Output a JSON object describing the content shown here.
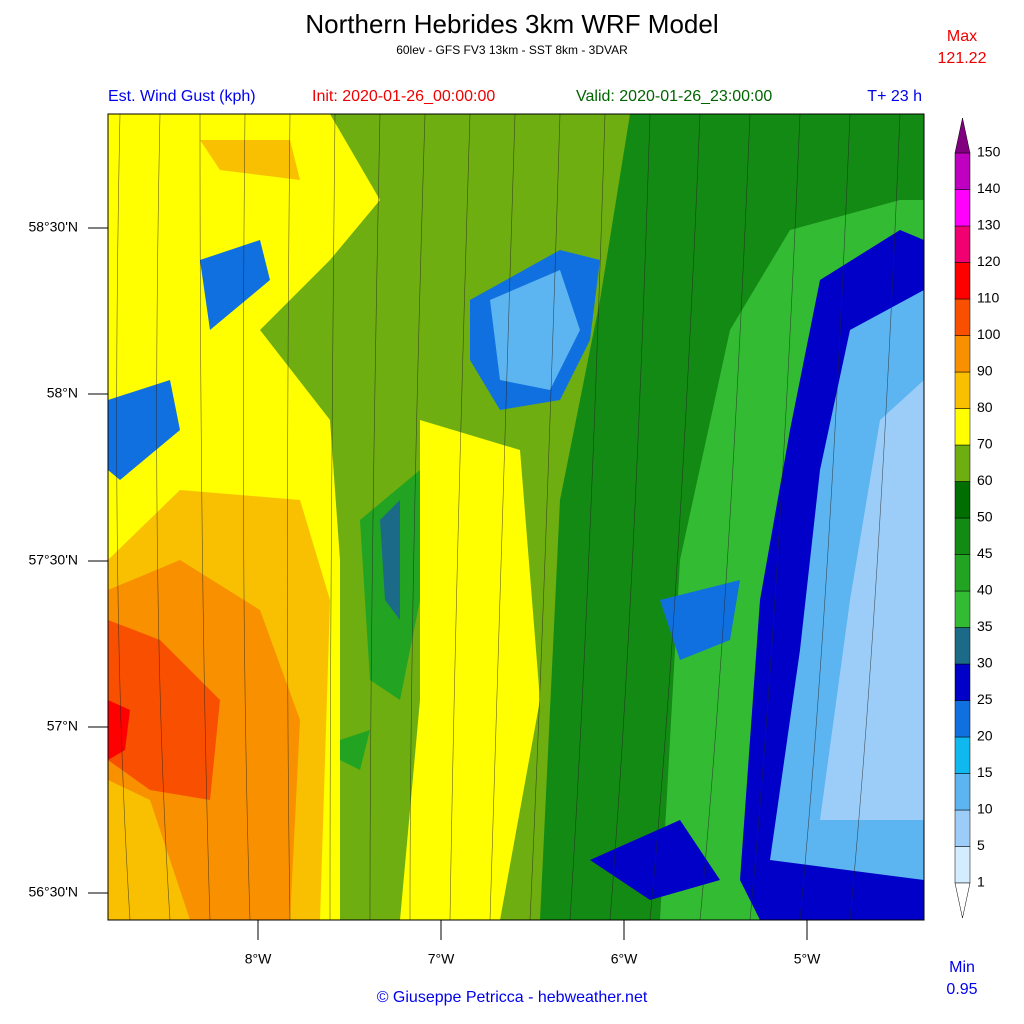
{
  "header": {
    "title": "Northern Hebrides 3km WRF Model",
    "subtitle": "60lev - GFS FV3 13km - SST 8km - 3DVAR"
  },
  "labels": {
    "variable": "Est. Wind Gust (kph)",
    "init": "Init: 2020-01-26_00:00:00",
    "valid": "Valid: 2020-01-26_23:00:00",
    "forecast_hour": "T+ 23 h"
  },
  "max": {
    "label": "Max",
    "value": 121.22
  },
  "min": {
    "label": "Min",
    "value": 0.95
  },
  "lat_ticks": [
    "58°30'N",
    "58°N",
    "57°30'N",
    "57°N",
    "56°30'N"
  ],
  "lon_ticks": [
    "8°W",
    "7°W",
    "6°W",
    "5°W"
  ],
  "colorbar": {
    "levels": [
      1,
      5,
      10,
      15,
      20,
      25,
      30,
      35,
      40,
      45,
      50,
      60,
      70,
      80,
      90,
      100,
      110,
      120,
      130,
      140,
      150
    ],
    "colors": [
      "#d4ecff",
      "#9ccdf8",
      "#5cb4f0",
      "#10b8f0",
      "#1070e0",
      "#0000c8",
      "#1a6a88",
      "#33bb33",
      "#22a322",
      "#138a13",
      "#006e00",
      "#6eae10",
      "#ffff00",
      "#f8c000",
      "#f89000",
      "#f85000",
      "#ff0000",
      "#f00070",
      "#ff00ff",
      "#c000c0"
    ],
    "over_color": "#800080",
    "under_color": "#ffffff"
  },
  "footer": "© Giuseppe Petricca - hebweather.net"
}
